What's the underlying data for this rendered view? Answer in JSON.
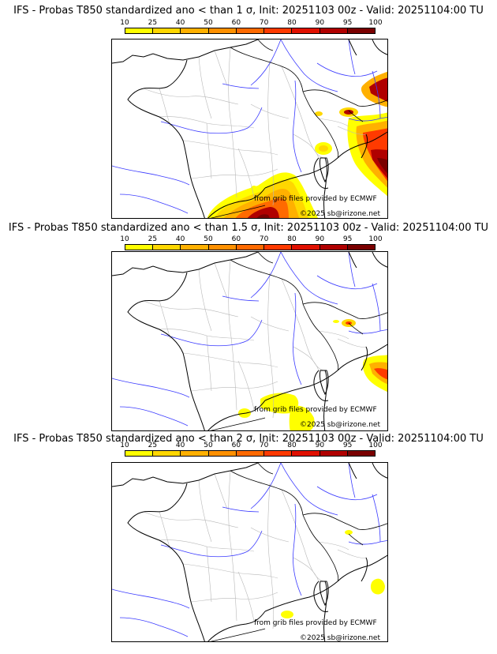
{
  "legend": {
    "ticks": [
      "10",
      "25",
      "40",
      "50",
      "60",
      "70",
      "80",
      "90",
      "95",
      "100"
    ],
    "colors": [
      "#ffff00",
      "#ffd700",
      "#ffb000",
      "#ff9000",
      "#ff6a00",
      "#ff3a00",
      "#e01000",
      "#b00000",
      "#7a0000"
    ]
  },
  "panels": [
    {
      "title": "IFS - Probas T850  standardized ano < than 1 σ, Init: 20251103 00z - Valid: 20251104:00 TU",
      "credit_source": "from grib files provided by ECMWF",
      "credit_copyright": "©2025 sb@irizone.net"
    },
    {
      "title": "IFS - Probas T850  standardized ano < than 1.5 σ, Init: 20251103 00z - Valid: 20251104:00 TU",
      "credit_source": "from grib files provided by ECMWF",
      "credit_copyright": "©2025 sb@irizone.net"
    },
    {
      "title": "IFS - Probas T850  standardized ano < than 2 σ, Init: 20251103 00z - Valid: 20251104:00 TU",
      "credit_source": "from grib files provided by ECMWF",
      "credit_copyright": "©2025 sb@irizone.net"
    }
  ]
}
